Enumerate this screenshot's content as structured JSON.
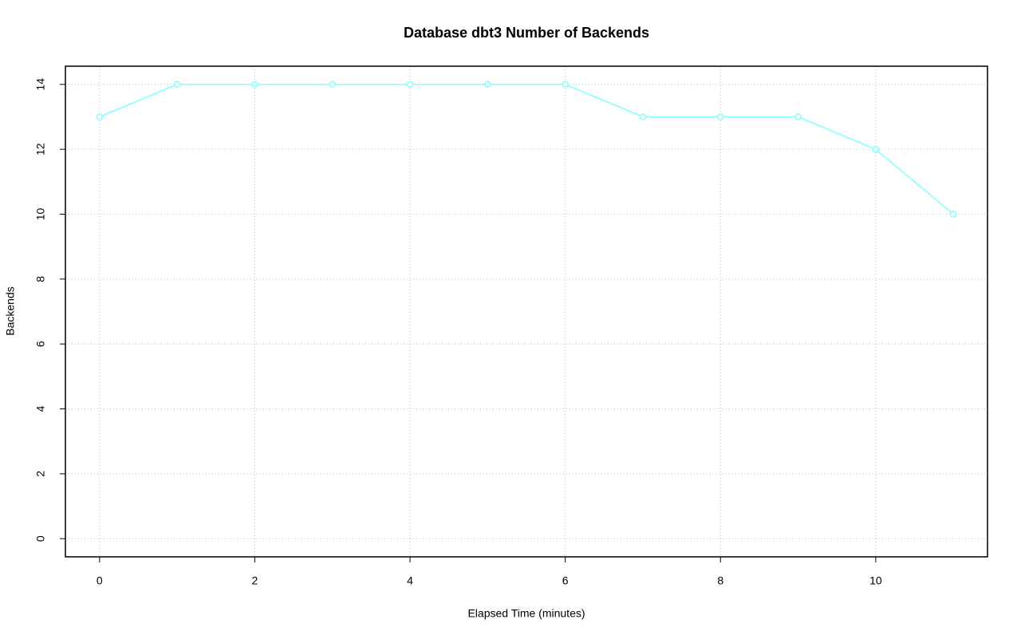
{
  "chart_data": {
    "type": "line",
    "title": "Database dbt3 Number of Backends",
    "x_label": "Elapsed Time (minutes)",
    "y_label": "Backends",
    "x": [
      0,
      1,
      2,
      3,
      4,
      5,
      6,
      7,
      8,
      9,
      10,
      11
    ],
    "series": [
      {
        "name": "Backends",
        "color": "#80ffff",
        "values": [
          13,
          14,
          14,
          14,
          14,
          14,
          14,
          13,
          13,
          13,
          12,
          10
        ]
      }
    ],
    "xlim": [
      -0.44,
      11.44
    ],
    "xticks": [
      0,
      2,
      4,
      6,
      8,
      10
    ],
    "ylim": [
      -0.56,
      14.56
    ],
    "yticks": [
      0,
      2,
      4,
      6,
      8,
      10,
      12,
      14
    ],
    "grid": true
  }
}
